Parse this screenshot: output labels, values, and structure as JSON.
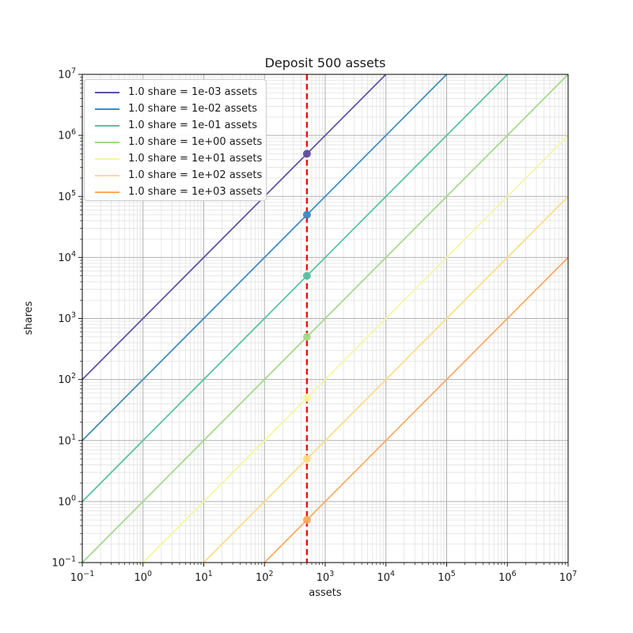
{
  "chart_data": {
    "type": "line",
    "title": "Deposit 500 assets",
    "xlabel": "assets",
    "ylabel": "shares",
    "xscale": "log",
    "yscale": "log",
    "xlim": [
      0.1,
      10000000
    ],
    "ylim": [
      0.1,
      10000000
    ],
    "x_tick_exponents": [
      -1,
      0,
      1,
      2,
      3,
      4,
      5,
      6,
      7
    ],
    "y_tick_exponents": [
      -1,
      0,
      1,
      2,
      3,
      4,
      5,
      6,
      7
    ],
    "grid": {
      "major": true,
      "minor": true,
      "major_color": "#b0b0b0",
      "minor_color": "#e2e2e2"
    },
    "legend_position": "upper left",
    "vline": {
      "x": 500,
      "color": "#ee1111",
      "style": "dashed",
      "meaning": "deposit of 500 assets"
    },
    "series": [
      {
        "label": "1.0 share = 1e-03 assets",
        "assets_per_share": 0.001,
        "color": "#5e4fa2",
        "point": {
          "x": 500,
          "y": 500000
        }
      },
      {
        "label": "1.0 share = 1e-02 assets",
        "assets_per_share": 0.01,
        "color": "#3a8bc2",
        "point": {
          "x": 500,
          "y": 50000
        }
      },
      {
        "label": "1.0 share = 1e-01 assets",
        "assets_per_share": 0.1,
        "color": "#55c1a0",
        "point": {
          "x": 500,
          "y": 5000
        }
      },
      {
        "label": "1.0 share = 1e+00 assets",
        "assets_per_share": 1,
        "color": "#a2d987",
        "point": {
          "x": 500,
          "y": 500
        }
      },
      {
        "label": "1.0 share = 1e+01 assets",
        "assets_per_share": 10,
        "color": "#f2f99d",
        "point": {
          "x": 500,
          "y": 50
        }
      },
      {
        "label": "1.0 share = 1e+02 assets",
        "assets_per_share": 100,
        "color": "#fcdc85",
        "point": {
          "x": 500,
          "y": 5
        }
      },
      {
        "label": "1.0 share = 1e+03 assets",
        "assets_per_share": 1000,
        "color": "#fca95f",
        "point": {
          "x": 500,
          "y": 0.5
        }
      }
    ]
  }
}
